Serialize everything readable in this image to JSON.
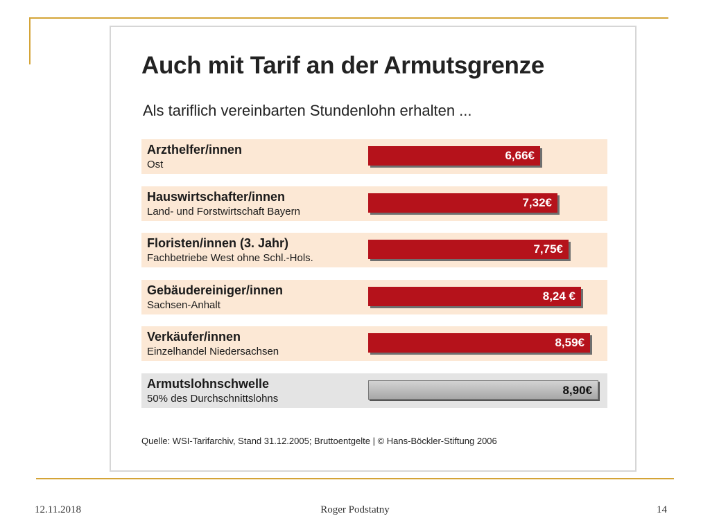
{
  "slide": {
    "date": "12.11.2018",
    "author": "Roger Podstatny",
    "page_number": "14"
  },
  "chart_data": {
    "type": "bar",
    "orientation": "horizontal",
    "title": "Auch mit Tarif an der Armutsgrenze",
    "subtitle": "Als tariflich vereinbarten Stundenlohn erhalten ...",
    "categories": [
      {
        "label": "Arzthelfer/innen",
        "sublabel": "Ost"
      },
      {
        "label": "Hauswirtschafter/innen",
        "sublabel": "Land- und Forstwirtschaft Bayern"
      },
      {
        "label": "Floristen/innen (3. Jahr)",
        "sublabel": "Fachbetriebe West ohne Schl.-Hols."
      },
      {
        "label": "Gebäudereiniger/innen",
        "sublabel": "Sachsen-Anhalt"
      },
      {
        "label": "Verkäufer/innen",
        "sublabel": "Einzelhandel Niedersachsen"
      },
      {
        "label": "Armutslohnschwelle",
        "sublabel": "50% des Durchschnittslohns"
      }
    ],
    "values": [
      6.66,
      7.32,
      7.75,
      8.24,
      8.59,
      8.9
    ],
    "value_labels": [
      "6,66€",
      "7,32€",
      "7,75€",
      "8,24 €",
      "8,59€",
      "8,90€"
    ],
    "reference_index": 5,
    "colors": {
      "bar": "#b5121b",
      "reference_bar": "#b8b8b8",
      "row_bg": "#fce8d5",
      "reference_row_bg": "#e4e4e4"
    },
    "source": "Quelle: WSI-Tarifarchiv, Stand 31.12.2005; Bruttoentgelte | © Hans-Böckler-Stiftung 2006"
  }
}
